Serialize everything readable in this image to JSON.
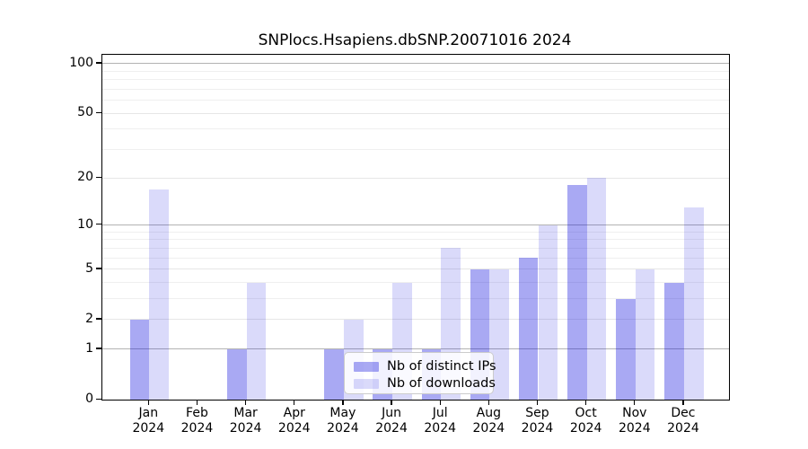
{
  "figure": {
    "title": "SNPlocs.Hsapiens.dbSNP.20071016 2024"
  },
  "chart_data": {
    "type": "bar",
    "title": "SNPlocs.Hsapiens.dbSNP.20071016 2024",
    "categories": [
      "Jan",
      "Feb",
      "Mar",
      "Apr",
      "May",
      "Jun",
      "Jul",
      "Aug",
      "Sep",
      "Oct",
      "Nov",
      "Dec"
    ],
    "category_year": "2024",
    "series": [
      {
        "name": "Nb of distinct IPs",
        "color": "#0a0adc",
        "alpha": 0.35,
        "values": [
          2,
          0,
          1,
          0,
          1,
          1,
          1,
          5,
          6,
          18,
          3,
          4
        ]
      },
      {
        "name": "Nb of downloads",
        "color": "#0a0adc",
        "alpha": 0.15,
        "values": [
          17,
          0,
          4,
          0,
          2,
          4,
          7,
          5,
          10,
          20,
          5,
          13
        ]
      }
    ],
    "yscale": "log1p",
    "ylim": [
      0,
      113
    ],
    "yticks": [
      100,
      50,
      20,
      10,
      5,
      2,
      1,
      0
    ],
    "yticks_minor": [
      3,
      4,
      6,
      7,
      8,
      9,
      30,
      40,
      60,
      70,
      80,
      90
    ],
    "grid": true,
    "legend": {
      "position": "lower center",
      "labels": [
        "Nb of distinct IPs",
        "Nb of downloads"
      ]
    },
    "colors": {
      "grid_major": "#b3b3b3",
      "grid_mid": "#e6e6e6",
      "grid_minor": "#efefef",
      "axis": "#000000",
      "bar_distinct_ips_rendered": "#a9a9f1",
      "bar_downloads_rendered": "#d9d9f8"
    }
  }
}
